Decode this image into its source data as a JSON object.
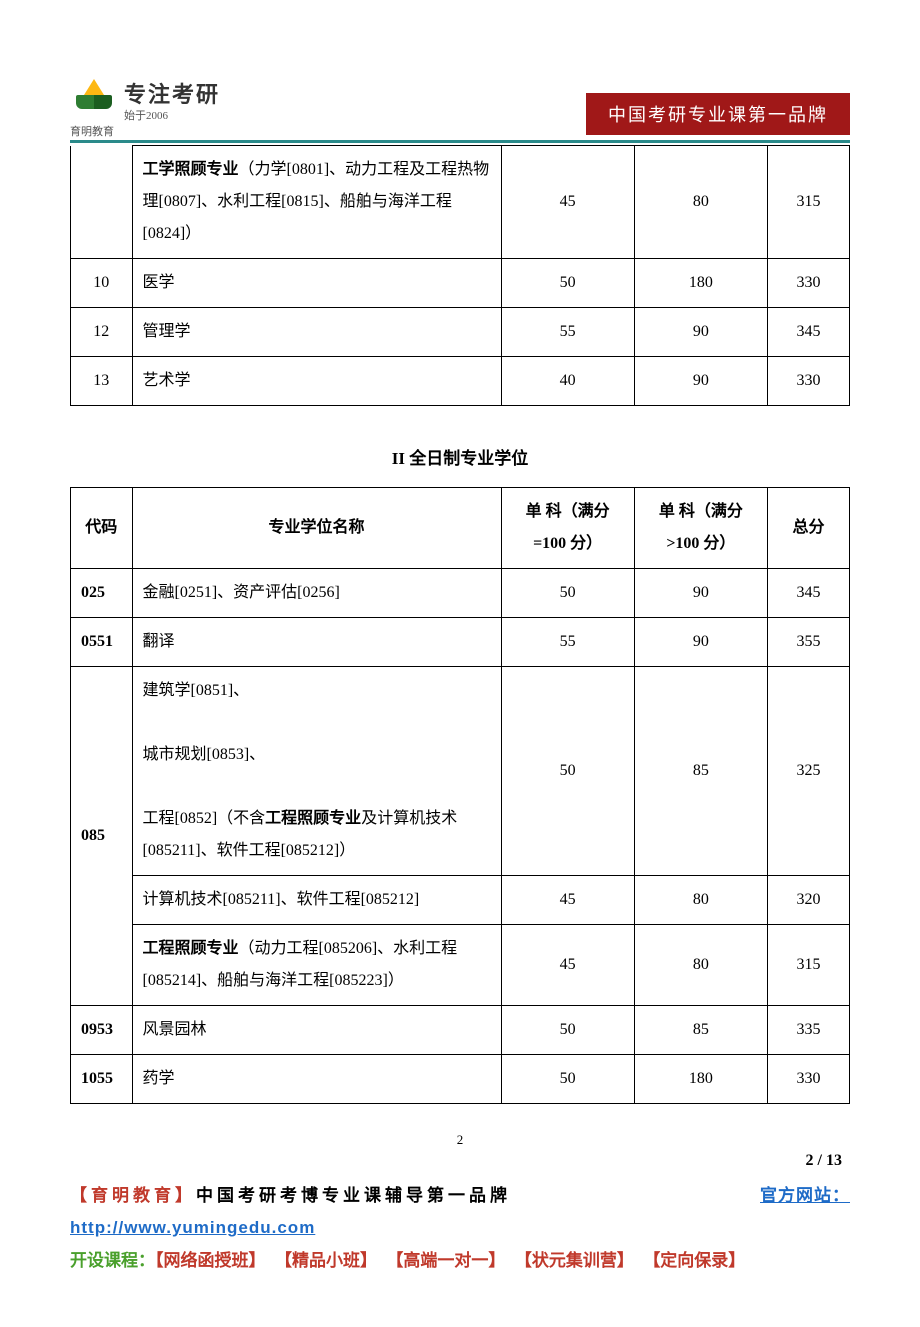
{
  "header": {
    "logo_brand": "专注考研",
    "logo_sub": "始于2006",
    "logo_label": "育明教育",
    "ribbon": "中国考研专业课第一品牌"
  },
  "table1": {
    "rows": [
      {
        "code": "",
        "name_prefix_bold": "工学照顾专业",
        "name_rest": "（力学[0801]、动力工程及工程热物理[0807]、水利工程[0815]、船舶与海洋工程[0824]）",
        "s1": "45",
        "s2": "80",
        "total": "315"
      },
      {
        "code": "10",
        "name": "医学",
        "s1": "50",
        "s2": "180",
        "total": "330"
      },
      {
        "code": "12",
        "name": "管理学",
        "s1": "55",
        "s2": "90",
        "total": "345"
      },
      {
        "code": "13",
        "name": "艺术学",
        "s1": "40",
        "s2": "90",
        "total": "330"
      }
    ]
  },
  "section_title": "II 全日制专业学位",
  "table2": {
    "headers": {
      "code": "代码",
      "name": "专业学位名称",
      "s1": "单 科（满分=100 分）",
      "s2": "单 科（满分>100 分）",
      "total": "总分"
    },
    "rows": [
      {
        "code": "025",
        "name": "金融[0251]、资产评估[0256]",
        "s1": "50",
        "s2": "90",
        "total": "345"
      },
      {
        "code": "0551",
        "name": "翻译",
        "s1": "55",
        "s2": "90",
        "total": "355"
      },
      {
        "code": "085",
        "sub": [
          {
            "name_lines": "建筑学[0851]、\n\n城市规划[0853]、\n\n工程[0852]（不含",
            "name_bold": "工程照顾专业",
            "name_tail": "及计算机技术[085211]、软件工程[085212]）",
            "s1": "50",
            "s2": "85",
            "total": "325"
          },
          {
            "name": "计算机技术[085211]、软件工程[085212]",
            "s1": "45",
            "s2": "80",
            "total": "320"
          },
          {
            "name_bold": "工程照顾专业",
            "name_tail": "（动力工程[085206]、水利工程[085214]、船舶与海洋工程[085223]）",
            "s1": "45",
            "s2": "80",
            "total": "315"
          }
        ]
      },
      {
        "code": "0953",
        "name": "风景园林",
        "s1": "50",
        "s2": "85",
        "total": "335"
      },
      {
        "code": "1055",
        "name": "药学",
        "s1": "50",
        "s2": "180",
        "total": "330"
      }
    ]
  },
  "footer": {
    "page_num_small": "2",
    "page_num_big": "2 / 13",
    "line1_brand": "【育明教育】",
    "line1_text": "中国考研考博专业课辅导第一品牌",
    "line1_right": "官方网站：",
    "link": "http://www.yumingedu.com",
    "courses_label": "开设课程：",
    "courses": [
      "【网络函授班】",
      "【精品小班】",
      "【高端一对一】",
      "【状元集训营】",
      "【定向保录】"
    ]
  },
  "colors": {
    "red": "#c0392b",
    "blue": "#1e6bc7",
    "green": "#4aa02c",
    "teal": "#2a8a8a",
    "ribbon_bg": "#a01818"
  }
}
